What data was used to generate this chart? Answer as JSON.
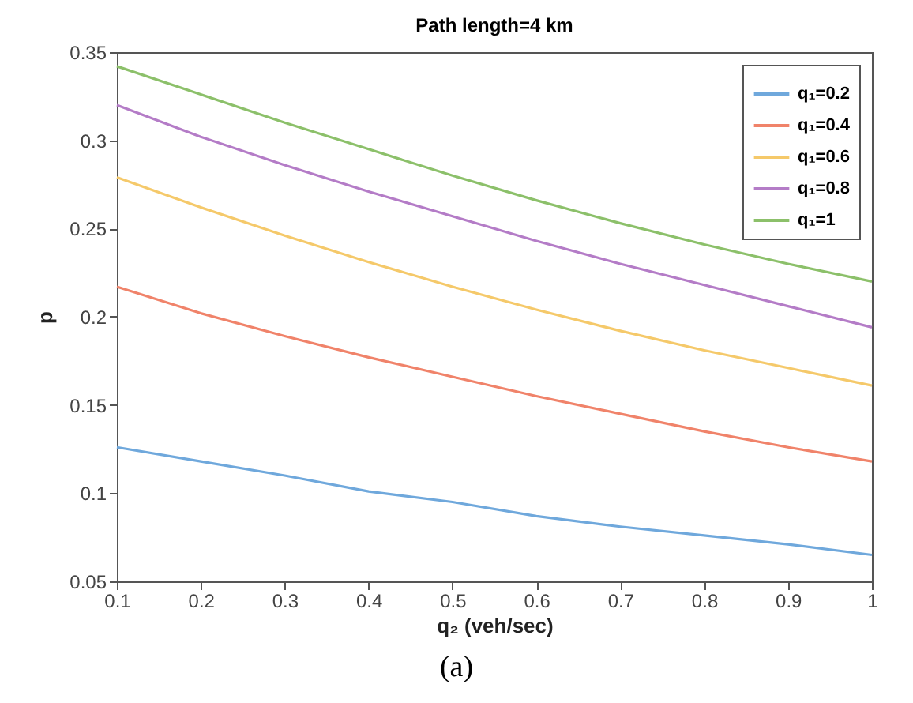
{
  "chart_data": {
    "type": "line",
    "title": "Path length=4 km",
    "xlabel": "q₂ (veh/sec)",
    "ylabel": "p",
    "annotations": [
      "(a)"
    ],
    "x": [
      0.1,
      0.2,
      0.3,
      0.4,
      0.5,
      0.6,
      0.7,
      0.8,
      0.9,
      1
    ],
    "xlim": [
      0.1,
      1
    ],
    "xticks": [
      0.1,
      0.2,
      0.3,
      0.4,
      0.5,
      0.6,
      0.7,
      0.8,
      0.9,
      1
    ],
    "ylim": [
      0.05,
      0.35
    ],
    "yticks": [
      0.05,
      0.1,
      0.15,
      0.2,
      0.25,
      0.3,
      0.35
    ],
    "grid": false,
    "legend": "top right",
    "marker": "none",
    "line_style": "solid",
    "series": [
      {
        "name": "q₁=0.2",
        "color": "#6fa8dc",
        "values": [
          0.126,
          0.118,
          0.11,
          0.101,
          0.095,
          0.087,
          0.081,
          0.076,
          0.071,
          0.065
        ]
      },
      {
        "name": "q₁=0.4",
        "color": "#f0836a",
        "values": [
          0.217,
          0.202,
          0.189,
          0.177,
          0.166,
          0.155,
          0.145,
          0.135,
          0.126,
          0.118
        ]
      },
      {
        "name": "q₁=0.6",
        "color": "#f5c96a",
        "values": [
          0.279,
          0.262,
          0.246,
          0.231,
          0.217,
          0.204,
          0.192,
          0.181,
          0.171,
          0.161
        ]
      },
      {
        "name": "q₁=0.8",
        "color": "#b47cc7",
        "values": [
          0.32,
          0.302,
          0.286,
          0.271,
          0.257,
          0.243,
          0.23,
          0.218,
          0.206,
          0.194
        ]
      },
      {
        "name": "q₁=1",
        "color": "#8cc06a",
        "values": [
          0.342,
          0.326,
          0.31,
          0.295,
          0.28,
          0.266,
          0.253,
          0.241,
          0.23,
          0.22
        ]
      }
    ]
  }
}
